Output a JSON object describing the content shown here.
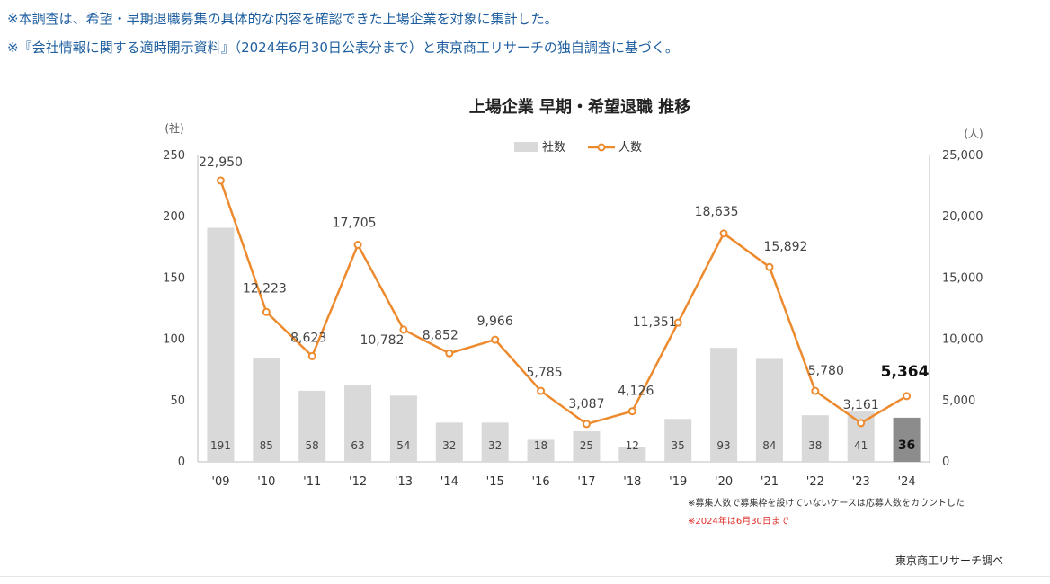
{
  "notes": {
    "line1": "※本調査は、希望・早期退職募集の具体的な内容を確認できた上場企業を対象に集計した。",
    "line2": "※『会社情報に関する適時開示資料』（2024年6月30日公表分まで）と東京商工リサーチの独自調査に基づく。"
  },
  "chart_data": {
    "type": "bar",
    "title": "上場企業 早期・希望退職 推移",
    "categories": [
      "'09",
      "'10",
      "'11",
      "'12",
      "'13",
      "'14",
      "'15",
      "'16",
      "'17",
      "'18",
      "'19",
      "'20",
      "'21",
      "'22",
      "'23",
      "'24"
    ],
    "series": [
      {
        "name": "社数",
        "type": "bar",
        "axis": "left",
        "values": [
          191,
          85,
          58,
          63,
          54,
          32,
          32,
          18,
          25,
          12,
          35,
          93,
          84,
          38,
          41,
          36
        ],
        "color": "#d9d9d9",
        "highlight_last_color": "#8c8c8c"
      },
      {
        "name": "人数",
        "type": "line",
        "axis": "right",
        "values": [
          22950,
          12223,
          8623,
          17705,
          10782,
          8852,
          9966,
          5785,
          3087,
          4126,
          11351,
          18635,
          15892,
          5780,
          3161,
          5364
        ],
        "labels": [
          "22,950",
          "12,223",
          "8,623",
          "17,705",
          "10,782",
          "8,852",
          "9,966",
          "5,785",
          "3,087",
          "4,126",
          "11,351",
          "18,635",
          "15,892",
          "5,780",
          "3,161",
          "5,364"
        ],
        "color": "#ed8a2e"
      }
    ],
    "left_axis": {
      "unit": "(社)",
      "ylim": [
        0,
        250
      ],
      "ticks": [
        "0",
        "50",
        "100",
        "150",
        "200",
        "250"
      ]
    },
    "right_axis": {
      "unit": "(人)",
      "ylim": [
        0,
        25000
      ],
      "ticks": [
        "0",
        "5,000",
        "10,000",
        "15,000",
        "20,000",
        "25,000"
      ]
    },
    "legend": {
      "placement": "top-center",
      "items": [
        "社数",
        "人数"
      ]
    },
    "grid": false,
    "footnotes": [
      {
        "text": "※募集人数で募集枠を設けていないケースは応募人数をカウントした",
        "color": "#333333"
      },
      {
        "text": "※2024年は6月30日まで",
        "color": "#e0312b"
      }
    ]
  },
  "credit": "東京商工リサーチ調べ"
}
